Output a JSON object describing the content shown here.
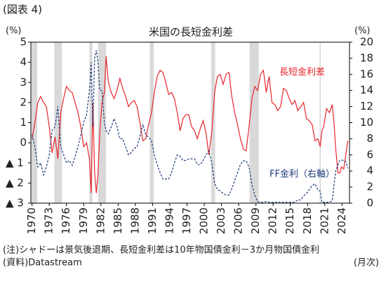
{
  "chart_data": {
    "type": "line",
    "figure_label": "(図表 4)",
    "title": "米国の長短金利差",
    "y_label": "(%)",
    "y2_label": "(%)",
    "note": "(注)シャドーは景気後退期、長短金利差は10年物国債金利－3か月物国債金利",
    "source": "(資料)Datastream",
    "frequency_label": "(月次)",
    "x": [
      1970,
      1970.5,
      1971,
      1971.5,
      1972,
      1972.5,
      1973,
      1973.5,
      1974,
      1974.5,
      1975,
      1975.5,
      1976,
      1976.5,
      1977,
      1977.5,
      1978,
      1978.5,
      1979,
      1979.5,
      1980,
      1980.3,
      1980.6,
      1980.9,
      1981.2,
      1981.5,
      1981.8,
      1982.2,
      1982.6,
      1982.9,
      1983.3,
      1983.8,
      1984.3,
      1984.8,
      1985.3,
      1985.8,
      1986.3,
      1986.8,
      1987.3,
      1987.8,
      1988.3,
      1988.8,
      1989.3,
      1989.8,
      1990.3,
      1990.8,
      1991.3,
      1991.8,
      1992.3,
      1992.8,
      1993.3,
      1993.8,
      1994.3,
      1994.8,
      1995.3,
      1995.8,
      1996.3,
      1996.8,
      1997.3,
      1997.8,
      1998.3,
      1998.8,
      1999.3,
      1999.8,
      2000.3,
      2000.8,
      2001.3,
      2001.8,
      2002.3,
      2002.8,
      2003.3,
      2003.8,
      2004.3,
      2004.8,
      2005.3,
      2005.8,
      2006.3,
      2006.8,
      2007.3,
      2007.8,
      2008.3,
      2008.8,
      2009.3,
      2009.8,
      2010.3,
      2010.8,
      2011.3,
      2011.8,
      2012.3,
      2012.8,
      2013.3,
      2013.8,
      2014.3,
      2014.8,
      2015.3,
      2015.8,
      2016.3,
      2016.8,
      2017.3,
      2017.8,
      2018.3,
      2018.8,
      2019.3,
      2019.8,
      2020.2,
      2020.5,
      2020.8,
      2021.3,
      2021.8,
      2022.3,
      2022.6,
      2022.9,
      2023.3,
      2023.6,
      2023.9,
      2024.3,
      2024.7,
      2025
    ],
    "series": [
      {
        "name": "長短金利差",
        "color": "#e8262d",
        "axis": "y",
        "values": [
          0.2,
          1.0,
          2.0,
          2.3,
          2.0,
          1.8,
          0.8,
          -0.5,
          0.3,
          -0.8,
          1.5,
          2.2,
          2.8,
          2.6,
          2.5,
          2.0,
          1.5,
          0.8,
          -0.2,
          0.0,
          -0.8,
          -2.5,
          2.0,
          -1.5,
          -2.5,
          -1.5,
          0.5,
          2.0,
          2.5,
          4.3,
          3.0,
          2.5,
          2.2,
          2.6,
          3.2,
          2.7,
          2.3,
          1.8,
          2.0,
          2.1,
          1.8,
          1.0,
          0.1,
          0.2,
          0.9,
          1.5,
          2.5,
          3.3,
          3.6,
          3.5,
          3.0,
          2.4,
          2.5,
          2.2,
          1.5,
          0.6,
          1.2,
          1.4,
          1.4,
          0.8,
          0.6,
          0.2,
          0.7,
          1.1,
          0.5,
          -0.6,
          0.5,
          2.5,
          3.3,
          3.4,
          2.9,
          3.4,
          3.5,
          2.3,
          1.5,
          0.9,
          0.2,
          -0.3,
          -0.4,
          0.8,
          2.2,
          2.8,
          2.6,
          3.4,
          3.6,
          2.5,
          3.3,
          2.0,
          1.9,
          1.6,
          1.8,
          2.7,
          2.6,
          2.2,
          1.9,
          2.1,
          1.6,
          1.8,
          2.0,
          1.2,
          1.1,
          0.9,
          0.1,
          0.2,
          -0.2,
          0.6,
          0.8,
          1.7,
          1.5,
          1.9,
          1.0,
          -0.3,
          -1.5,
          -1.5,
          -1.2,
          -1.3,
          -0.5,
          0.1
        ]
      },
      {
        "name": "FF金利（右軸）",
        "color": "#1f3a7a",
        "axis": "y2",
        "dash": true,
        "values": [
          8.5,
          7,
          4.5,
          5,
          3.5,
          4.5,
          6,
          9,
          9.5,
          12,
          7,
          6,
          5,
          5.3,
          4.7,
          5.8,
          7,
          8.5,
          10,
          11,
          14,
          17.5,
          9.5,
          18,
          19,
          17.5,
          14,
          14,
          10,
          9,
          8.6,
          9.5,
          10.5,
          9.5,
          8,
          8,
          7,
          6,
          6.3,
          6.8,
          7,
          8.3,
          9.8,
          8.5,
          8.2,
          7.8,
          6,
          4.8,
          3.8,
          3,
          3,
          3,
          3.8,
          5,
          6,
          5.8,
          5.3,
          5.3,
          5.5,
          5.5,
          5.5,
          4.8,
          4.8,
          5.3,
          6,
          6.5,
          5,
          2.5,
          1.7,
          1.5,
          1.2,
          1,
          1,
          1.8,
          2.8,
          3.8,
          4.8,
          5.25,
          5.25,
          4.5,
          2.3,
          1,
          0.2,
          0.1,
          0.1,
          0.2,
          0.1,
          0.1,
          0.1,
          0.15,
          0.1,
          0.1,
          0.1,
          0.1,
          0.1,
          0.15,
          0.4,
          0.4,
          0.9,
          1.2,
          1.7,
          2.2,
          2.4,
          1.6,
          1.5,
          0.1,
          0.1,
          0.1,
          0.1,
          0.3,
          2.3,
          4.0,
          4.8,
          5.3,
          5.33,
          5.33,
          5.1,
          4.33
        ]
      }
    ],
    "recessions": [
      [
        1969.9,
        1970.9
      ],
      [
        1973.9,
        1975.2
      ],
      [
        1980.0,
        1980.5
      ],
      [
        1981.5,
        1982.9
      ],
      [
        1990.5,
        1991.2
      ],
      [
        2001.2,
        2001.9
      ],
      [
        2007.9,
        2009.5
      ],
      [
        2020.1,
        2020.3
      ]
    ],
    "recession_color": "#d9d9d9",
    "xlim": [
      1969.8,
      2025.3
    ],
    "xticks": [
      1970,
      1973,
      1976,
      1979,
      1982,
      1985,
      1988,
      1991,
      1994,
      1997,
      2000,
      2003,
      2006,
      2009,
      2012,
      2015,
      2018,
      2021,
      2024
    ],
    "ylim": [
      -3,
      5
    ],
    "yticks": [
      {
        "value": -3,
        "label": "▲ 3"
      },
      {
        "value": -2,
        "label": "▲ 2"
      },
      {
        "value": -1,
        "label": "▲ 1"
      },
      0,
      1,
      2,
      3,
      4,
      5
    ],
    "y2lim": [
      0,
      20
    ],
    "y2ticks": [
      0,
      2,
      4,
      6,
      8,
      10,
      12,
      14,
      16,
      18,
      20
    ]
  }
}
